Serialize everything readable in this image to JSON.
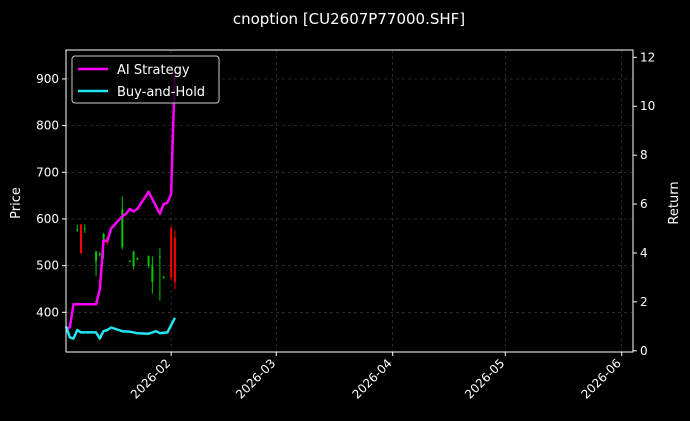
{
  "chart_data": {
    "type": "line",
    "title": "cnoption [CU2607P77000.SHF]",
    "ylabel_left": "Price",
    "ylabel_right": "Return",
    "grid": true,
    "legend_position": "top-left",
    "x_ticks": [
      "2026-02",
      "2026-03",
      "2026-04",
      "2026-05",
      "2026-06"
    ],
    "x_range": [
      "2026-01-04",
      "2026-06-04"
    ],
    "y_left_range": [
      315,
      962
    ],
    "y_left_ticks": [
      400,
      500,
      600,
      700,
      800,
      900
    ],
    "y_right_range": [
      -0.05,
      12.3
    ],
    "y_right_ticks": [
      0,
      2,
      4,
      6,
      8,
      10,
      12
    ],
    "colors": {
      "up": "#00c800",
      "down": "#ff0000",
      "ai": "#ff00ff",
      "bh": "#22e5f2",
      "grid": "#444444"
    },
    "candles": [
      {
        "date": "2026-01-07",
        "open": 578,
        "close": 578,
        "high": 588,
        "low": 572
      },
      {
        "date": "2026-01-08",
        "open": 588,
        "close": 527,
        "high": 590,
        "low": 525
      },
      {
        "date": "2026-01-09",
        "open": 580,
        "close": 580,
        "high": 588,
        "low": 570
      },
      {
        "date": "2026-01-12",
        "open": 510,
        "close": 530,
        "high": 532,
        "low": 478
      },
      {
        "date": "2026-01-13",
        "open": 525,
        "close": 525,
        "high": 530,
        "low": 520
      },
      {
        "date": "2026-01-14",
        "open": 545,
        "close": 568,
        "high": 570,
        "low": 515
      },
      {
        "date": "2026-01-15",
        "open": 560,
        "close": 548,
        "high": 562,
        "low": 545
      },
      {
        "date": "2026-01-16",
        "open": 575,
        "close": 580,
        "high": 582,
        "low": 570
      },
      {
        "date": "2026-01-19",
        "open": 540,
        "close": 620,
        "high": 648,
        "low": 535
      },
      {
        "date": "2026-01-21",
        "open": 510,
        "close": 510,
        "high": 512,
        "low": 508
      },
      {
        "date": "2026-01-22",
        "open": 500,
        "close": 530,
        "high": 532,
        "low": 492
      },
      {
        "date": "2026-01-23",
        "open": 515,
        "close": 515,
        "high": 518,
        "low": 512
      },
      {
        "date": "2026-01-26",
        "open": 500,
        "close": 520,
        "high": 522,
        "low": 495
      },
      {
        "date": "2026-01-27",
        "open": 465,
        "close": 500,
        "high": 520,
        "low": 440
      },
      {
        "date": "2026-01-29",
        "open": 520,
        "close": 520,
        "high": 538,
        "low": 425
      },
      {
        "date": "2026-01-30",
        "open": 476,
        "close": 476,
        "high": 478,
        "low": 472
      },
      {
        "date": "2026-02-01",
        "open": 582,
        "close": 476,
        "high": 582,
        "low": 470
      },
      {
        "date": "2026-02-02",
        "open": 560,
        "close": 465,
        "high": 575,
        "low": 450
      }
    ],
    "series": [
      {
        "name": "AI Strategy",
        "axis": "right",
        "points": [
          [
            "2026-01-04",
            0.9
          ],
          [
            "2026-01-05",
            0.95
          ],
          [
            "2026-01-06",
            1.9
          ],
          [
            "2026-01-09",
            1.9
          ],
          [
            "2026-01-12",
            1.9
          ],
          [
            "2026-01-13",
            2.5
          ],
          [
            "2026-01-14",
            4.5
          ],
          [
            "2026-01-15",
            4.5
          ],
          [
            "2026-01-16",
            5.0
          ],
          [
            "2026-01-19",
            5.5
          ],
          [
            "2026-01-20",
            5.6
          ],
          [
            "2026-01-21",
            5.8
          ],
          [
            "2026-01-22",
            5.7
          ],
          [
            "2026-01-23",
            5.8
          ],
          [
            "2026-01-26",
            6.5
          ],
          [
            "2026-01-27",
            6.2
          ],
          [
            "2026-01-28",
            5.9
          ],
          [
            "2026-01-29",
            5.6
          ],
          [
            "2026-01-30",
            6.0
          ],
          [
            "2026-01-31",
            6.05
          ],
          [
            "2026-02-01",
            6.4
          ],
          [
            "2026-02-02",
            11.5
          ]
        ]
      },
      {
        "name": "Buy-and-Hold",
        "axis": "right",
        "points": [
          [
            "2026-01-04",
            1.0
          ],
          [
            "2026-01-05",
            0.55
          ],
          [
            "2026-01-06",
            0.5
          ],
          [
            "2026-01-07",
            0.85
          ],
          [
            "2026-01-08",
            0.75
          ],
          [
            "2026-01-12",
            0.75
          ],
          [
            "2026-01-13",
            0.5
          ],
          [
            "2026-01-14",
            0.8
          ],
          [
            "2026-01-15",
            0.85
          ],
          [
            "2026-01-16",
            0.95
          ],
          [
            "2026-01-19",
            0.8
          ],
          [
            "2026-01-21",
            0.78
          ],
          [
            "2026-01-23",
            0.72
          ],
          [
            "2026-01-26",
            0.7
          ],
          [
            "2026-01-28",
            0.8
          ],
          [
            "2026-01-29",
            0.72
          ],
          [
            "2026-01-31",
            0.75
          ],
          [
            "2026-02-02",
            1.35
          ]
        ]
      }
    ]
  }
}
